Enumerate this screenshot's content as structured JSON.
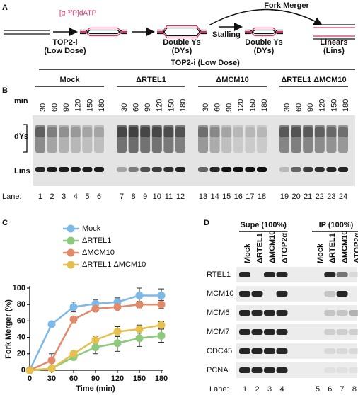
{
  "panel_a": {
    "label": "A",
    "dntp": "[α-³²P]dATP",
    "treatment": [
      "TOP2-i",
      "(Low Dose)"
    ],
    "dys_1": [
      "Double Ys",
      "(DYs)"
    ],
    "stalling": "Stalling",
    "dys_2": [
      "Double Ys",
      "(DYs)"
    ],
    "fork_merger": "Fork Merger",
    "linears": [
      "Linears",
      "(Lins)"
    ]
  },
  "panel_b": {
    "label": "B",
    "treatment": "TOP2-i (Low Dose)",
    "groups": [
      "Mock",
      "ΔRTEL1",
      "ΔMCM10",
      "ΔRTEL1 ΔMCM10"
    ],
    "min_label": "min",
    "times": [
      30,
      60,
      90,
      120,
      150,
      180
    ],
    "band_labels": [
      "dYs",
      "Lins"
    ],
    "lane_label": "Lane:",
    "lanes": [
      1,
      2,
      3,
      4,
      5,
      6,
      7,
      8,
      9,
      10,
      11,
      12,
      13,
      14,
      15,
      16,
      17,
      18,
      19,
      20,
      21,
      22,
      23,
      24
    ]
  },
  "panel_c": {
    "label": "C"
  },
  "chart_data": {
    "type": "line",
    "y_label": "Fork Merger (%)",
    "x_label": "Time (min)",
    "x": [
      0,
      30,
      60,
      90,
      120,
      150,
      180
    ],
    "series": [
      {
        "name": "Mock",
        "color": "#7db9e8",
        "values": [
          0,
          56,
          77,
          81,
          83,
          91,
          91
        ],
        "errors": [
          0,
          3,
          6,
          5,
          5,
          9,
          8
        ]
      },
      {
        "name": "ΔRTEL1",
        "color": "#8cc97a",
        "values": [
          0,
          2,
          16,
          28,
          33,
          39,
          42
        ],
        "errors": [
          0,
          2,
          3,
          8,
          10,
          10,
          8
        ]
      },
      {
        "name": "ΔMCM10",
        "color": "#e08a6a",
        "values": [
          0,
          12,
          62,
          75,
          77,
          80,
          80
        ],
        "errors": [
          0,
          8,
          4,
          4,
          5,
          4,
          5
        ]
      },
      {
        "name": "ΔRTEL1 ΔMCM10",
        "color": "#e6c04e",
        "values": [
          0,
          2,
          20,
          37,
          47,
          50,
          55
        ],
        "errors": [
          0,
          2,
          3,
          4,
          6,
          5,
          4
        ]
      }
    ],
    "xlim": [
      0,
      180
    ],
    "xticks": [
      0,
      30,
      60,
      90,
      120,
      150,
      180
    ],
    "ylim": [
      0,
      100
    ],
    "yticks": [
      0,
      20,
      40,
      60,
      80,
      100
    ]
  },
  "panel_d": {
    "label": "D",
    "groups": [
      "Supe (100%)",
      "IP (100%)"
    ],
    "columns": [
      "Mock",
      "ΔRTEL1",
      "ΔMCM10",
      "ΔTOP2α"
    ],
    "rows": [
      "RTEL1",
      "MCM10",
      "MCM6",
      "MCM7",
      "CDC45",
      "PCNA"
    ],
    "lane_label": "Lane:",
    "lanes": [
      1,
      2,
      3,
      4,
      5,
      6,
      7,
      8
    ]
  }
}
